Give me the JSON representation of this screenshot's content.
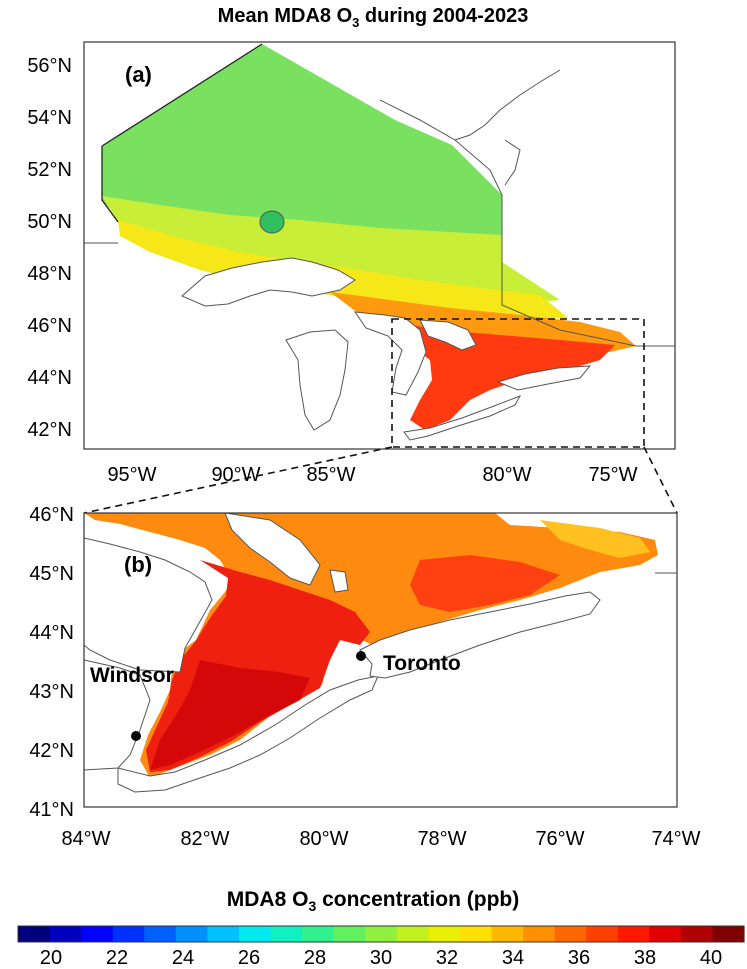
{
  "title": {
    "pre": "Mean MDA8 O",
    "sub": "3",
    "post": " during 2004-2023"
  },
  "panel_a": {
    "label": "(a)",
    "lat_ticks": [
      "56°N",
      "54°N",
      "52°N",
      "50°N",
      "48°N",
      "46°N",
      "44°N",
      "42°N"
    ],
    "lon_ticks": [
      "95°W",
      "90°W",
      "85°W",
      "80°W",
      "75°W"
    ]
  },
  "panel_b": {
    "label": "(b)",
    "lat_ticks": [
      "46°N",
      "45°N",
      "44°N",
      "43°N",
      "42°N",
      "41°N"
    ],
    "lon_ticks": [
      "84°W",
      "82°W",
      "80°W",
      "78°W",
      "76°W",
      "74°W"
    ],
    "cities": [
      {
        "name": "Windsor",
        "lat": 42.3,
        "lon": -83.0
      },
      {
        "name": "Toronto",
        "lat": 43.65,
        "lon": -79.38
      }
    ]
  },
  "colorbar": {
    "title": {
      "pre": "MDA8 O",
      "sub": "3",
      "post": " concentration (ppb)"
    },
    "ticks": [
      "20",
      "22",
      "24",
      "26",
      "28",
      "30",
      "32",
      "34",
      "36",
      "38",
      "40"
    ],
    "range": [
      19,
      41
    ],
    "colors": [
      "#00007f",
      "#0000bf",
      "#0000ff",
      "#0030ff",
      "#0060ff",
      "#0090ff",
      "#00c0ff",
      "#00e8f0",
      "#10f0c0",
      "#30f090",
      "#60f060",
      "#90f040",
      "#c0f020",
      "#e8f000",
      "#ffe000",
      "#ffb800",
      "#ff9000",
      "#ff6800",
      "#ff4000",
      "#ff1800",
      "#e00000",
      "#b00000",
      "#800000"
    ]
  }
}
